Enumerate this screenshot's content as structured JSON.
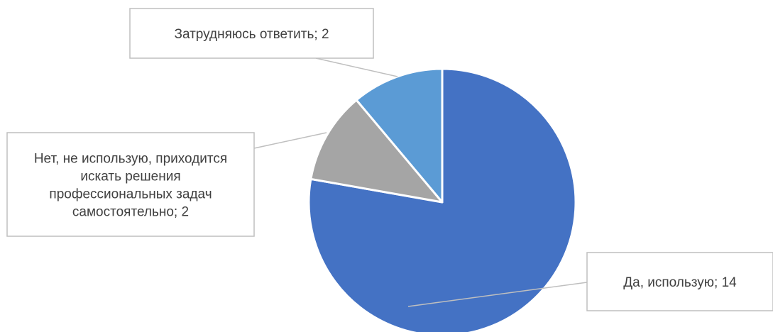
{
  "chart_data": {
    "type": "pie",
    "title": "",
    "slices": [
      {
        "label": "Да, использую",
        "value": 14,
        "color": "#4472C4",
        "callout_lines": [
          "Да, использую; 14"
        ]
      },
      {
        "label": "Нет, не использую, приходится искать решения профессиональных задач самостоятельно",
        "value": 2,
        "color": "#A5A5A5",
        "callout_lines": [
          "Нет, не использую, приходится",
          "искать решения",
          "профессиональных задач",
          "самостоятельно; 2"
        ]
      },
      {
        "label": "Затрудняюсь ответить",
        "value": 2,
        "color": "#5B9BD5",
        "callout_lines": [
          "Затрудняюсь ответить; 2"
        ]
      }
    ],
    "legend": "none",
    "data_labels": "callouts"
  }
}
